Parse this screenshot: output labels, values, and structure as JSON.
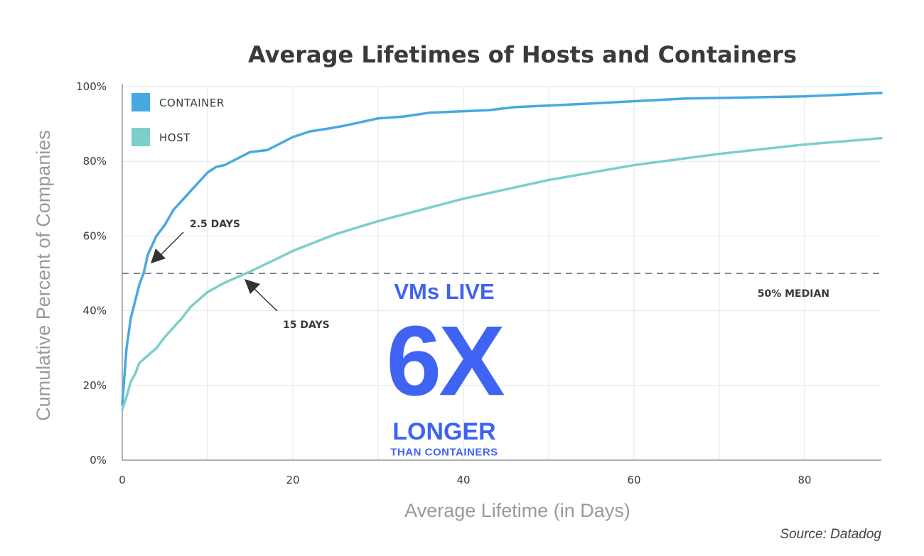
{
  "chart_data": {
    "type": "line",
    "title": "Average Lifetimes of Hosts and Containers",
    "xlabel": "Average Lifetime (in Days)",
    "ylabel": "Cumulative Percent of Companies",
    "xlim": [
      0,
      89
    ],
    "ylim": [
      0,
      100
    ],
    "xticks": [
      0,
      20,
      40,
      60,
      80
    ],
    "xtick_labels": [
      "0",
      "20",
      "40",
      "60",
      "80"
    ],
    "yticks": [
      0,
      20,
      40,
      60,
      80,
      100
    ],
    "ytick_labels": [
      "0%",
      "20%",
      "40%",
      "60%",
      "80%",
      "100%"
    ],
    "grid": true,
    "legend_placement": "top-left",
    "series": [
      {
        "name": "CONTAINER",
        "color": "#48a9e0",
        "x": [
          0,
          0.5,
          1,
          2,
          2.5,
          3,
          4,
          5,
          6,
          8,
          10,
          11,
          12,
          15,
          17,
          20,
          22,
          24,
          26,
          30,
          33,
          36,
          43,
          46,
          55,
          66,
          80,
          89
        ],
        "y": [
          15,
          30,
          38,
          47,
          50,
          55,
          60,
          63,
          67,
          72,
          77,
          78.5,
          79,
          82.5,
          83,
          86.5,
          88,
          88.7,
          89.5,
          91.5,
          92,
          93,
          93.7,
          94.5,
          95.5,
          96.8,
          97.4,
          98.3
        ]
      },
      {
        "name": "HOST",
        "color": "#7ccfcb",
        "x": [
          0,
          0.5,
          1,
          1.5,
          2,
          3,
          4,
          5,
          7,
          8,
          10,
          12,
          15,
          20,
          25,
          30,
          40,
          50,
          60,
          70,
          80,
          89
        ],
        "y": [
          13.5,
          17,
          21,
          23,
          26,
          28,
          30,
          33,
          38,
          41,
          45,
          47.5,
          50.5,
          56,
          60.5,
          64,
          70,
          75,
          79,
          82,
          84.5,
          86.2
        ]
      }
    ],
    "reference_line": {
      "y": 50,
      "label": "50% MEDIAN",
      "color": "#2c3e5c"
    },
    "annotations": [
      {
        "text": "2.5 DAYS",
        "x": 2.5,
        "y": 50
      },
      {
        "text": "15 DAYS",
        "x": 15,
        "y": 50
      }
    ],
    "callout": {
      "line1": "VMs LIVE",
      "line2": "6X",
      "line3": "LONGER",
      "line4": "THAN CONTAINERS",
      "color": "#3f63f3"
    },
    "source": "Source: Datadog"
  }
}
